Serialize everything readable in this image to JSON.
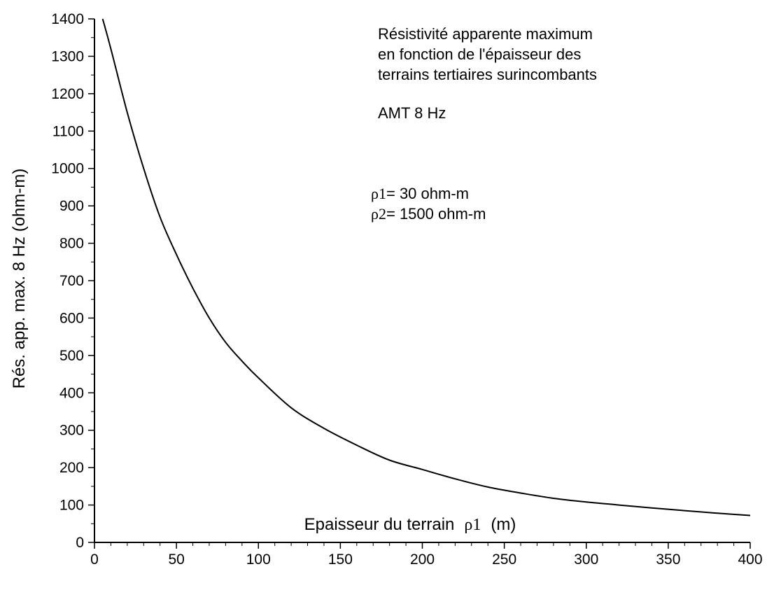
{
  "chart_data": {
    "type": "line",
    "xlabel_prefix": "Epaisseur du terrain",
    "xlabel_rho": "ρ1",
    "xlabel_unit": "(m)",
    "ylabel": "Rés. app. max. 8 Hz (ohm-m)",
    "xlim": [
      0,
      400
    ],
    "ylim": [
      0,
      1400
    ],
    "x_ticks": [
      0,
      50,
      100,
      150,
      200,
      250,
      300,
      350,
      400
    ],
    "y_ticks": [
      0,
      100,
      200,
      300,
      400,
      500,
      600,
      700,
      800,
      900,
      1000,
      1100,
      1200,
      1300,
      1400
    ],
    "grid": false,
    "series": [
      {
        "x": [
          5,
          10,
          20,
          30,
          40,
          50,
          60,
          70,
          80,
          90,
          100,
          120,
          140,
          160,
          180,
          200,
          220,
          240,
          260,
          280,
          300,
          320,
          340,
          360,
          380,
          400
        ],
        "y": [
          1400,
          1320,
          1150,
          1000,
          870,
          770,
          680,
          600,
          535,
          485,
          440,
          360,
          305,
          260,
          220,
          195,
          170,
          148,
          132,
          118,
          108,
          100,
          92,
          85,
          78,
          72
        ]
      }
    ],
    "title_lines": [
      "Résistivité apparente maximum",
      "en fonction de l'épaisseur des",
      "terrains tertiaires surincombants"
    ],
    "subtitle": "AMT 8 Hz",
    "param_lines": [
      {
        "rho": "ρ1",
        "text": "= 30 ohm-m"
      },
      {
        "rho": "ρ2",
        "text": "= 1500 ohm-m"
      }
    ]
  }
}
